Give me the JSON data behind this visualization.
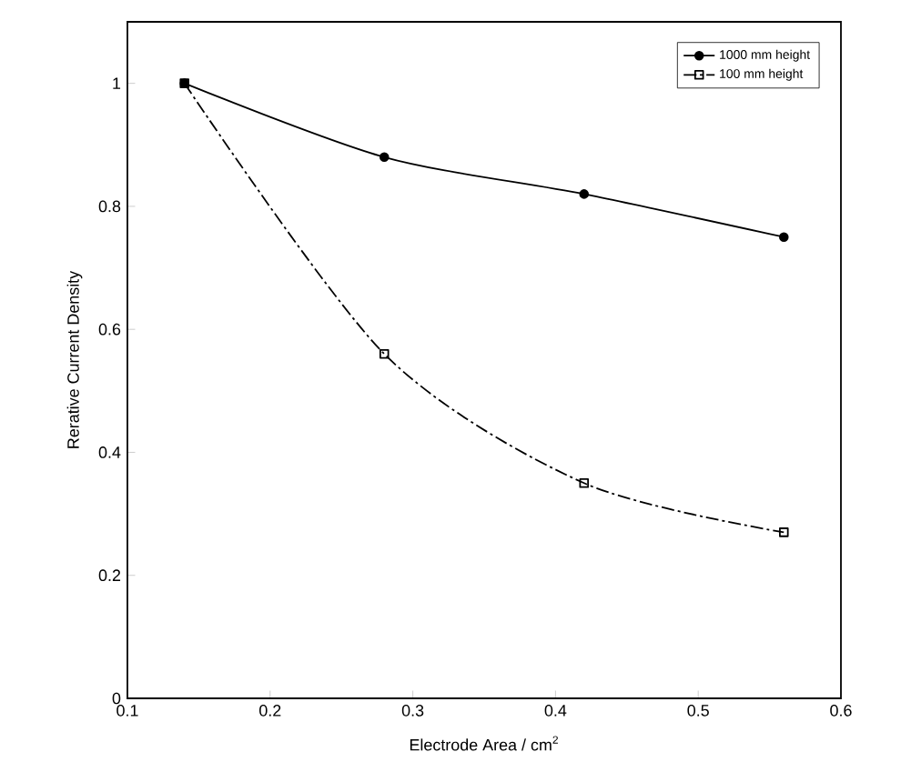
{
  "chart_data": {
    "type": "line",
    "xlabel": "Electrode Area / cm$^{2}$",
    "ylabel": "Rerative Current Density",
    "xlim": [
      0.1,
      0.6
    ],
    "xticks": [
      0.1,
      0.2,
      0.3,
      0.4,
      0.5,
      0.6
    ],
    "ylim": [
      0,
      1.1
    ],
    "yticks": [
      0,
      0.2,
      0.4,
      0.6,
      0.8,
      1
    ],
    "x": [
      0.14,
      0.28,
      0.42,
      0.56
    ],
    "legend": "top right",
    "grid": false,
    "series": [
      {
        "name": "1000 mm height",
        "color": "#000000",
        "marker": "circle",
        "line_style": "solid",
        "values": [
          1,
          0.88,
          0.82,
          0.75
        ]
      },
      {
        "name": "100 mm height",
        "color": "#000000",
        "marker": "square",
        "line_style": "dashed",
        "values": [
          1,
          0.56,
          0.35,
          0.27
        ]
      }
    ]
  }
}
